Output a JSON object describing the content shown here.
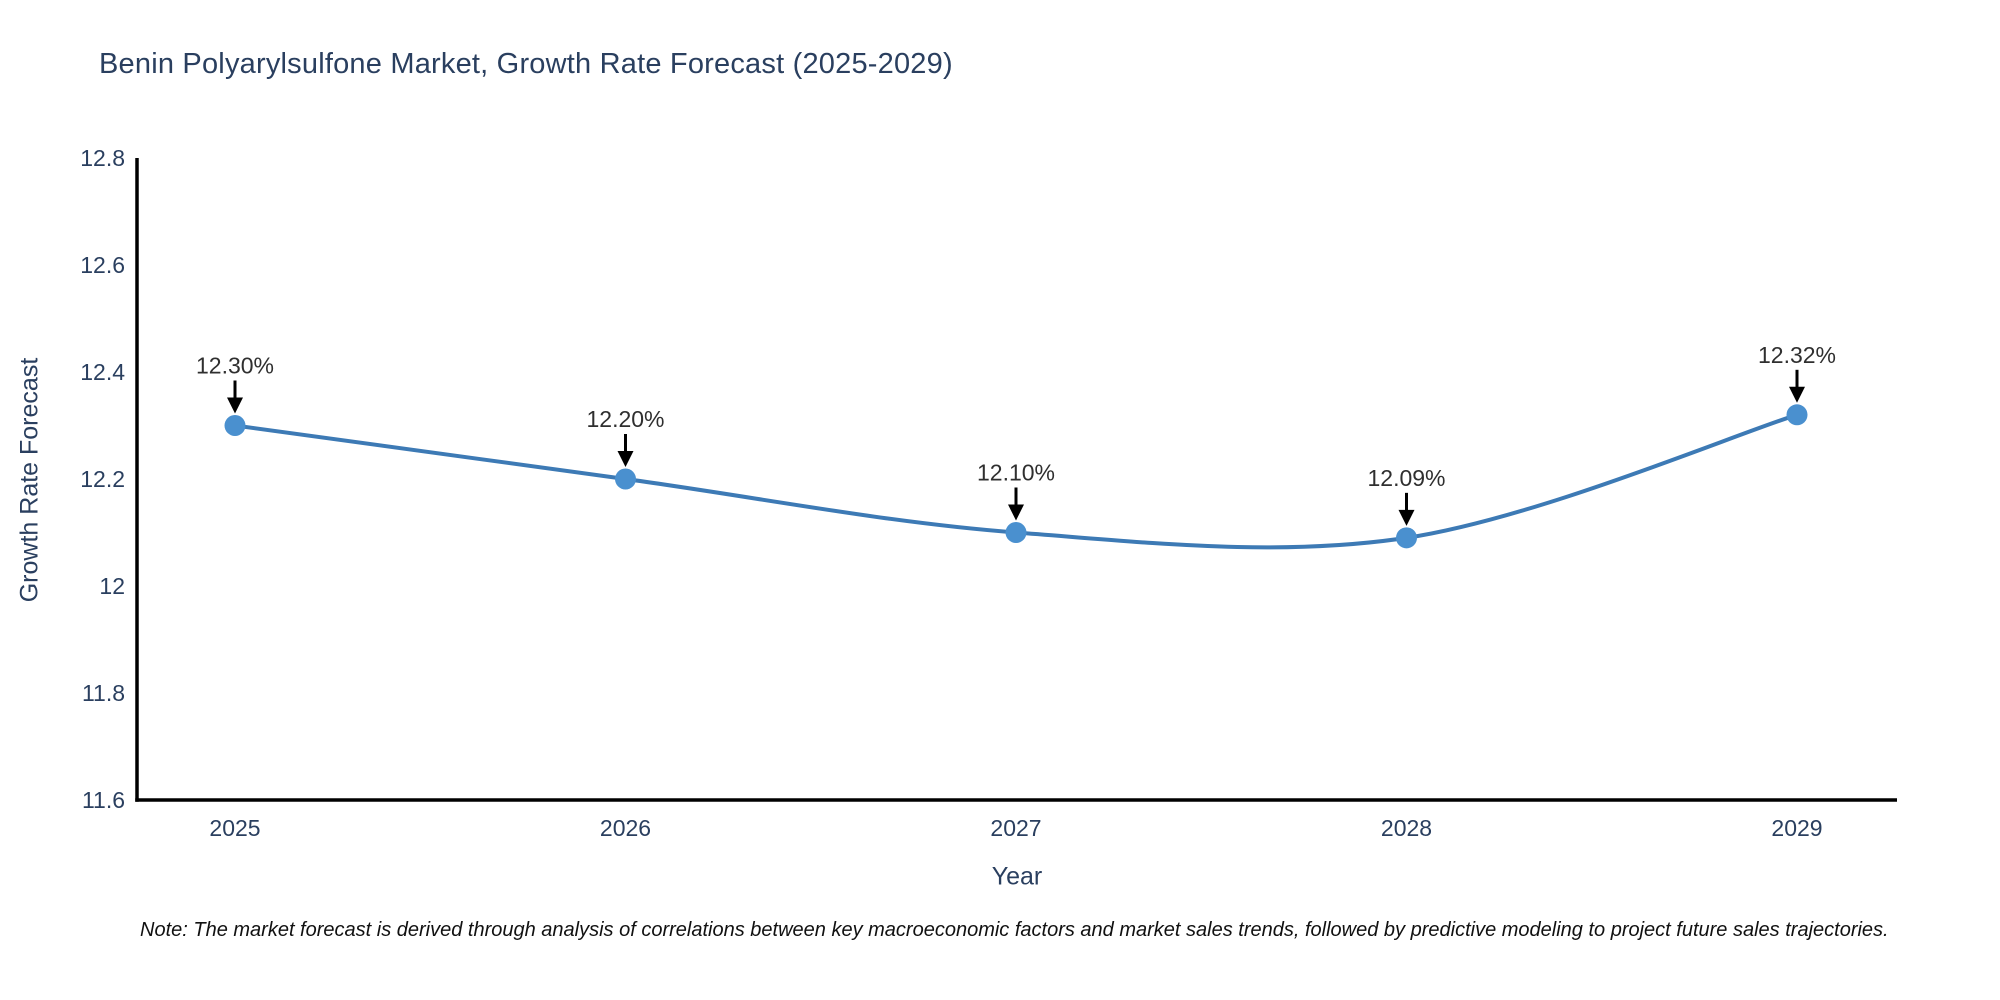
{
  "chart_data": {
    "type": "line",
    "title": "Benin Polyarylsulfone Market, Growth Rate Forecast (2025-2029)",
    "xlabel": "Year",
    "ylabel": "Growth Rate Forecast",
    "x": [
      2025,
      2026,
      2027,
      2028,
      2029
    ],
    "values": [
      12.3,
      12.2,
      12.1,
      12.09,
      12.32
    ],
    "point_labels": [
      "12.30%",
      "12.20%",
      "12.10%",
      "12.09%",
      "12.32%"
    ],
    "ylim": [
      11.6,
      12.8
    ],
    "yticks": [
      11.6,
      11.8,
      12,
      12.2,
      12.4,
      12.6,
      12.8
    ],
    "xticks": [
      "2025",
      "2026",
      "2027",
      "2028",
      "2029"
    ],
    "grid": false,
    "legend": false,
    "line_shape": "spline",
    "colors": {
      "line": "#3d7ab5",
      "marker": "#4a90cf",
      "axis": "#000000",
      "tick_text": "#2a3f5f",
      "annotation_text": "#2f2f2f",
      "arrow": "#000000",
      "title_text": "#2a3f5f",
      "background": "#ffffff"
    }
  },
  "note": {
    "text": "Note: The market forecast is derived through analysis of correlations between key macroeconomic factors and market sales trends, followed by predictive modeling to project future sales trajectories."
  }
}
